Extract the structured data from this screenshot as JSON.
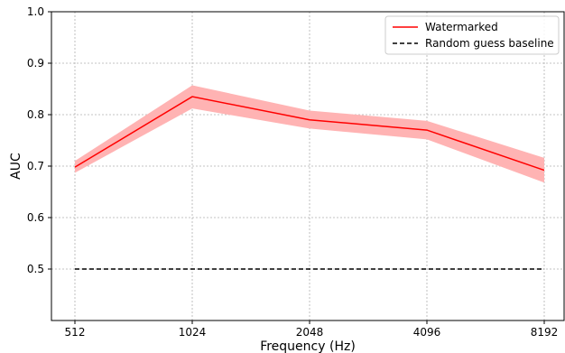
{
  "chart_data": {
    "type": "line",
    "xlabel": "Frequency (Hz)",
    "ylabel": "AUC",
    "x_scale": "log2",
    "categories": [
      "512",
      "1024",
      "2048",
      "4096",
      "8192"
    ],
    "x": [
      512,
      1024,
      2048,
      4096,
      8192
    ],
    "ylim": [
      0.4,
      1.0
    ],
    "yticks": [
      "0.5",
      "0.6",
      "0.7",
      "0.8",
      "0.9",
      "1.0"
    ],
    "grid": true,
    "legend_position": "top-right",
    "series": [
      {
        "name": "Watermarked",
        "color": "#ff0000",
        "band_color": "#ffb3b3",
        "line_style": "solid",
        "values": [
          0.698,
          0.835,
          0.79,
          0.77,
          0.692
        ],
        "band_lower": [
          0.687,
          0.812,
          0.773,
          0.752,
          0.668
        ],
        "band_upper": [
          0.71,
          0.857,
          0.808,
          0.788,
          0.716
        ]
      },
      {
        "name": "Random guess baseline",
        "color": "#000000",
        "line_style": "dashed",
        "values": [
          0.5,
          0.5,
          0.5,
          0.5,
          0.5
        ]
      }
    ]
  }
}
